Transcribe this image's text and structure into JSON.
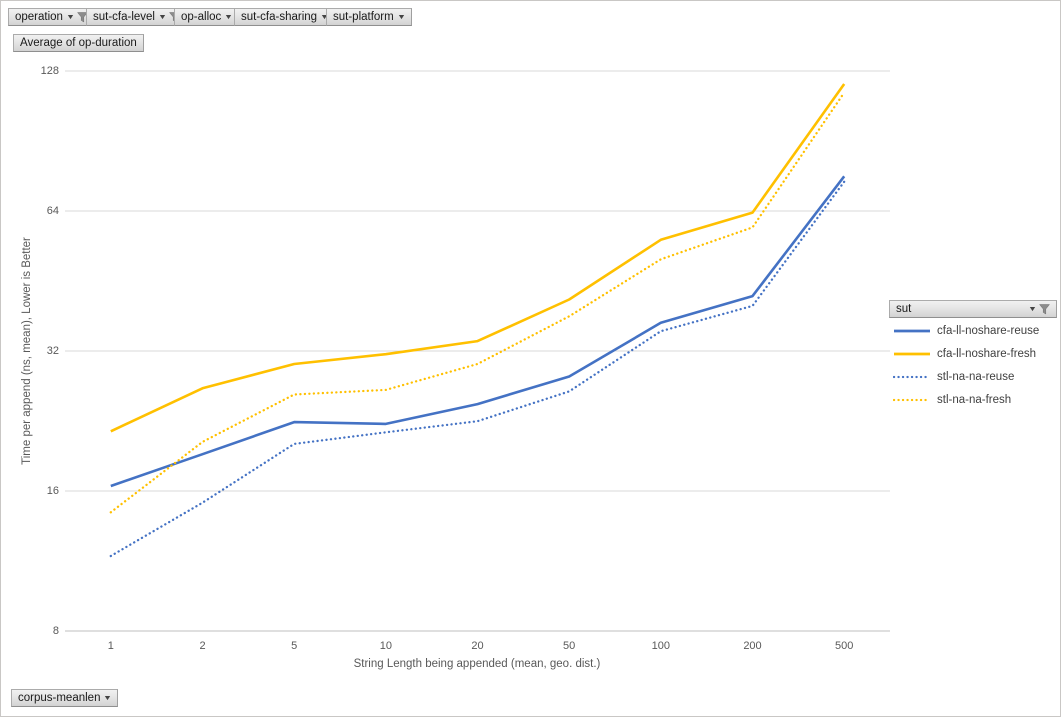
{
  "filters_top": [
    {
      "label": "operation",
      "filtered": true
    },
    {
      "label": "sut-cfa-level",
      "filtered": true
    },
    {
      "label": "op-alloc",
      "filtered": false
    },
    {
      "label": "sut-cfa-sharing",
      "filtered": false
    },
    {
      "label": "sut-platform",
      "filtered": false
    }
  ],
  "value_button": "Average of op-duration",
  "legend": {
    "field": "sut",
    "filtered": true
  },
  "bottom_filter": {
    "label": "corpus-meanlen",
    "filtered": false
  },
  "colors": {
    "blue": "#4472C4",
    "gold": "#FFC000",
    "gridline": "#D9D9D9",
    "axis_line": "#BFBFBF",
    "chart_text": "#595959"
  },
  "chart_data": {
    "type": "line",
    "title": "",
    "xlabel": "String Length being appended (mean, geo. dist.)",
    "ylabel": "Time per append (ns, mean),  Lower is Better",
    "x_scale": "categorical",
    "y_scale": "log2",
    "y_ticks": [
      8,
      16,
      32,
      64,
      128
    ],
    "ylim": [
      8,
      128
    ],
    "grid": "horizontal",
    "legend_position": "right",
    "categories": [
      "1",
      "2",
      "5",
      "10",
      "20",
      "50",
      "100",
      "200",
      "500"
    ],
    "series": [
      {
        "name": "cfa-ll-noshare-reuse",
        "style": "solid",
        "color": "#4472C4",
        "values": [
          16.4,
          19.2,
          22.5,
          22.3,
          24.6,
          28.2,
          36.8,
          42,
          76
        ]
      },
      {
        "name": "cfa-ll-noshare-fresh",
        "style": "solid",
        "color": "#FFC000",
        "values": [
          21.5,
          26.6,
          30.0,
          31.5,
          33.6,
          41.3,
          55.5,
          63.5,
          120
        ]
      },
      {
        "name": "stl-na-na-reuse",
        "style": "dotted",
        "color": "#4472C4",
        "values": [
          11.6,
          15.1,
          20.2,
          21.4,
          22.6,
          26.2,
          35.3,
          40,
          74
        ]
      },
      {
        "name": "stl-na-na-fresh",
        "style": "dotted",
        "color": "#FFC000",
        "values": [
          14.4,
          20.4,
          25.8,
          26.4,
          30.0,
          38.0,
          50.4,
          59,
          115
        ]
      }
    ]
  }
}
